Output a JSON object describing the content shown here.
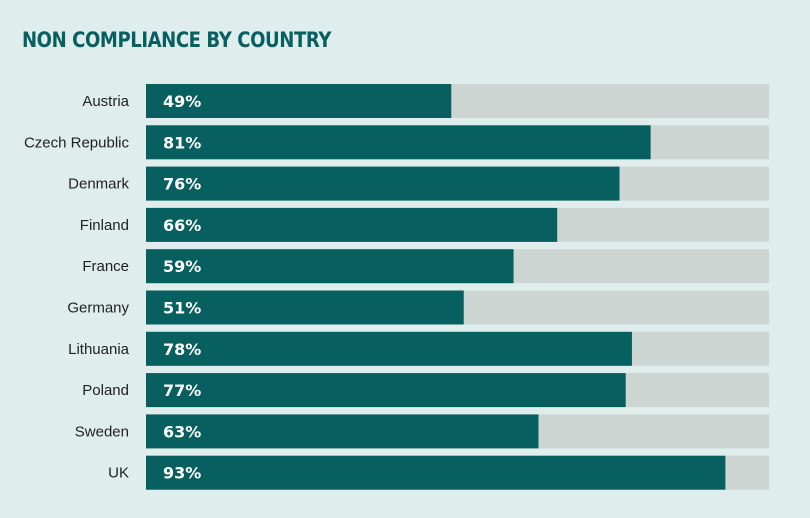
{
  "chart_data": {
    "type": "bar",
    "orientation": "horizontal",
    "title": "NON COMPLIANCE BY COUNTRY",
    "categories": [
      "Austria",
      "Czech Republic",
      "Denmark",
      "Finland",
      "France",
      "Germany",
      "Lithuania",
      "Poland",
      "Sweden",
      "UK"
    ],
    "values": [
      49,
      81,
      76,
      66,
      59,
      51,
      78,
      77,
      63,
      93
    ],
    "value_labels": [
      "49%",
      "81%",
      "76%",
      "66%",
      "59%",
      "51%",
      "78%",
      "77%",
      "63%",
      "93%"
    ],
    "unit": "%",
    "xlim": [
      0,
      100
    ],
    "grid": false,
    "legend": "none",
    "colors": {
      "bar": "#075f5f",
      "track": "#ccd5d2",
      "background": "#e0eded",
      "title": "#075f5f"
    }
  }
}
